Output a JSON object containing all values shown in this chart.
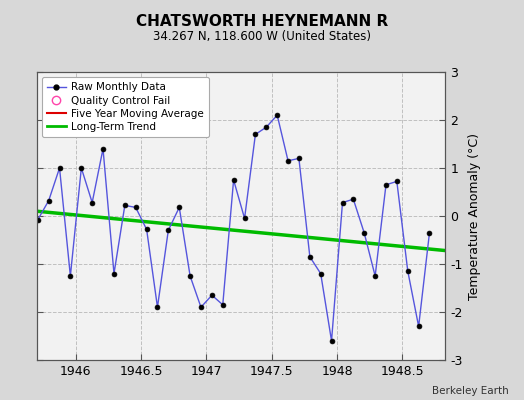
{
  "title": "CHATSWORTH HEYNEMANN R",
  "subtitle": "34.267 N, 118.600 W (United States)",
  "credit": "Berkeley Earth",
  "ylabel": "Temperature Anomaly (°C)",
  "xlim": [
    1945.7,
    1948.83
  ],
  "ylim": [
    -3,
    3
  ],
  "xticks": [
    1946,
    1946.5,
    1947,
    1947.5,
    1948,
    1948.5
  ],
  "yticks": [
    -3,
    -2,
    -1,
    0,
    1,
    2,
    3
  ],
  "bg_color": "#d8d8d8",
  "plot_bg_color": "#f2f2f2",
  "raw_x": [
    1945.708,
    1945.792,
    1945.875,
    1945.958,
    1946.042,
    1946.125,
    1946.208,
    1946.292,
    1946.375,
    1946.458,
    1946.542,
    1946.625,
    1946.708,
    1946.792,
    1946.875,
    1946.958,
    1947.042,
    1947.125,
    1947.208,
    1947.292,
    1947.375,
    1947.458,
    1947.542,
    1947.625,
    1947.708,
    1947.792,
    1947.875,
    1947.958,
    1948.042,
    1948.125,
    1948.208,
    1948.292,
    1948.375,
    1948.458,
    1948.542,
    1948.625,
    1948.708
  ],
  "raw_y": [
    -0.08,
    0.32,
    1.0,
    -1.25,
    1.0,
    0.28,
    1.4,
    -1.2,
    0.22,
    0.18,
    -0.28,
    -1.9,
    -0.3,
    0.18,
    -1.25,
    -1.9,
    -1.65,
    -1.85,
    0.75,
    -0.05,
    1.7,
    1.85,
    2.1,
    1.15,
    1.2,
    -0.85,
    -1.2,
    -2.6,
    0.28,
    0.35,
    -0.35,
    -1.25,
    0.65,
    0.72,
    -1.15,
    -2.3,
    -0.35
  ],
  "trend_x": [
    1945.7,
    1948.83
  ],
  "trend_y": [
    0.1,
    -0.72
  ],
  "raw_color": "#5555dd",
  "raw_marker_color": "#000000",
  "trend_color": "#00bb00",
  "mavg_color": "#dd0000",
  "grid_color": "#c0c0c0",
  "spine_color": "#555555"
}
